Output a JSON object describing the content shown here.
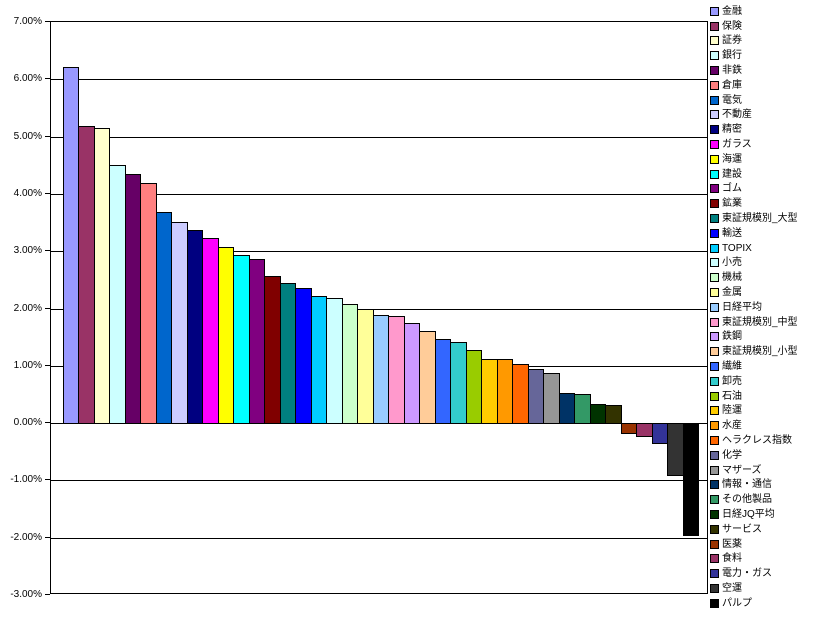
{
  "chart_data": {
    "type": "bar",
    "title": "",
    "xlabel": "",
    "ylabel": "",
    "ylim": [
      -3,
      7
    ],
    "grid": true,
    "legend_position": "right",
    "y_tick_labels": [
      "7.00%",
      "6.00%",
      "5.00%",
      "4.00%",
      "3.00%",
      "2.00%",
      "1.00%",
      "0.00%",
      "-1.00%",
      "-2.00%",
      "-3.00%"
    ],
    "y_tick_values": [
      7,
      6,
      5,
      4,
      3,
      2,
      1,
      0,
      -1,
      -2,
      -3
    ],
    "categories": [
      "金融",
      "保険",
      "証券",
      "銀行",
      "非鉄",
      "倉庫",
      "電気",
      "不動産",
      "精密",
      "ガラス",
      "海運",
      "建設",
      "ゴム",
      "鉱業",
      "東証規模別_大型",
      "輸送",
      "TOPIX",
      "小売",
      "機械",
      "金属",
      "日経平均",
      "東証規模別_中型",
      "鉄鋼",
      "東証規模別_小型",
      "繊維",
      "卸売",
      "石油",
      "陸運",
      "水産",
      "ヘラクレス指数",
      "化学",
      "マザーズ",
      "情報・通信",
      "その他製品",
      "日経JQ平均",
      "サービス",
      "医薬",
      "食料",
      "電力・ガス",
      "空運",
      "パルプ"
    ],
    "values": [
      6.22,
      5.18,
      5.15,
      4.5,
      4.34,
      4.18,
      3.69,
      3.51,
      3.36,
      3.22,
      3.07,
      2.93,
      2.87,
      2.56,
      2.45,
      2.36,
      2.21,
      2.18,
      2.07,
      1.99,
      1.88,
      1.87,
      1.75,
      1.6,
      1.46,
      1.41,
      1.28,
      1.12,
      1.11,
      1.03,
      0.94,
      0.88,
      0.53,
      0.5,
      0.34,
      0.32,
      -0.18,
      -0.22,
      -0.35,
      -0.9,
      -1.96
    ],
    "colors": [
      "#9999FF",
      "#993366",
      "#FFFFCC",
      "#CCFFFF",
      "#660066",
      "#FF8080",
      "#0066CC",
      "#CCCCFF",
      "#000080",
      "#FF00FF",
      "#FFFF00",
      "#00FFFF",
      "#800080",
      "#800000",
      "#008080",
      "#0000FF",
      "#00CCFF",
      "#CCFFFF",
      "#CCFFCC",
      "#FFFF99",
      "#99CCFF",
      "#FF99CC",
      "#CC99FF",
      "#FFCC99",
      "#3366FF",
      "#33CCCC",
      "#99CC00",
      "#FFCC00",
      "#FF9900",
      "#FF6600",
      "#666699",
      "#969696",
      "#003366",
      "#339966",
      "#003300",
      "#333300",
      "#993300",
      "#993366",
      "#333399",
      "#333333",
      "#000000"
    ]
  }
}
